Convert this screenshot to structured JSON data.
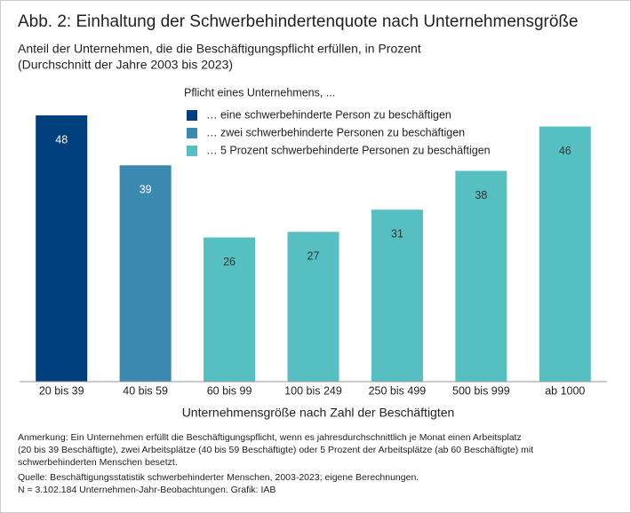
{
  "chart_data": {
    "type": "bar",
    "title": "Abb. 2: Einhaltung der Schwerbehindertenquote nach Unternehmensgröße",
    "subtitle": [
      "Anteil der Unternehmen, die die Beschäftigungspflicht erfüllen, in Prozent",
      "(Durchschnitt der Jahre 2003 bis 2023)"
    ],
    "legend_title": "Pflicht eines Unternehmens, ...",
    "categories": [
      "20 bis 39",
      "40 bis 59",
      "60 bis 99",
      "100 bis 249",
      "250 bis 499",
      "500 bis 999",
      "ab 1000"
    ],
    "series": [
      {
        "name": "… eine schwerbehinderte Person zu beschäftigen",
        "color": "#003f7d",
        "values": [
          48,
          null,
          null,
          null,
          null,
          null,
          null
        ]
      },
      {
        "name": "… zwei schwerbehinderte Personen zu beschäftigen",
        "color": "#3b88b0",
        "values": [
          null,
          39,
          null,
          null,
          null,
          null,
          null
        ]
      },
      {
        "name": "… 5 Prozent schwerbehinderte Personen zu beschäftigen",
        "color": "#56bfc1",
        "values": [
          null,
          null,
          26,
          27,
          31,
          38,
          46
        ]
      }
    ],
    "ylim": [
      0,
      50
    ],
    "xlabel": "Unternehmensgröße nach Zahl der Beschäftigten",
    "notes": [
      "Anmerkung: Ein Unternehmen erfüllt die Beschäftigungspflicht, wenn es jahresdurchschnittlich je Monat einen Arbeitsplatz",
      "(20 bis 39 Beschäftigte), zwei Arbeitsplätze (40 bis 59 Beschäftigte) oder 5 Prozent der Arbeitsplätze (ab 60 Beschäftigte) mit",
      "schwerbehinderten Menschen besetzt.",
      "Quelle: Beschäftigungsstatistik schwerbehinderter Menschen, 2003-2023; eigene Berechnungen.",
      "N = 3.102.184 Unternehmen-Jahr-Beobachtungen. Grafik: IAB"
    ]
  }
}
